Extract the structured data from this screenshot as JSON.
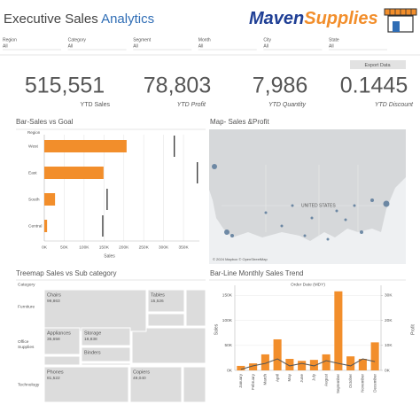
{
  "header": {
    "title": "Executive Sales",
    "title_highlight": "Analytics",
    "logo_first": "Maven",
    "logo_second": "Supplies"
  },
  "filters": [
    {
      "label": "Region",
      "value": "All"
    },
    {
      "label": "Category",
      "value": "All"
    },
    {
      "label": "Segment",
      "value": "All"
    },
    {
      "label": "Month",
      "value": "All"
    },
    {
      "label": "City",
      "value": "All"
    },
    {
      "label": "State",
      "value": "All"
    }
  ],
  "export_button": "Export Data",
  "kpis": [
    {
      "value": "515,551",
      "label": "YTD Sales"
    },
    {
      "value": "78,803",
      "label": "YTD Profit"
    },
    {
      "value": "7,986",
      "label": "YTD Quantity"
    },
    {
      "value": "0.1445",
      "label": "YTD Discount"
    }
  ],
  "map": {
    "title": "Map- Sales &Profit",
    "country": "UNITED STATES",
    "attribution": "© 2024 Mapbox © OpenStreetMap"
  },
  "chart_data": [
    {
      "type": "bar",
      "orientation": "horizontal",
      "title": "Bar-Sales vs Goal",
      "category_label": "Region",
      "categories": [
        "West",
        "East",
        "South",
        "Central"
      ],
      "values": [
        207000,
        149000,
        27000,
        7000
      ],
      "goals": [
        327000,
        385000,
        158000,
        147000
      ],
      "color": "#f28e2b",
      "goal_color": "#222222",
      "x_label": "Sales",
      "xlim": [
        0,
        390000
      ],
      "xticks": [
        {
          "value": 0,
          "label": "0K"
        },
        {
          "value": 50000,
          "label": "50K"
        },
        {
          "value": 100000,
          "label": "100K"
        },
        {
          "value": 150000,
          "label": "150K"
        },
        {
          "value": 200000,
          "label": "200K"
        },
        {
          "value": 250000,
          "label": "250K"
        },
        {
          "value": 300000,
          "label": "300K"
        },
        {
          "value": 350000,
          "label": "350K"
        }
      ],
      "grid": true
    },
    {
      "type": "treemap",
      "title": "Treemap Sales vs Sub category",
      "category_label": "Category",
      "color": "#dcdcdc",
      "groups": [
        {
          "name": "Furniture",
          "categories": [
            "Chairs",
            "Tables"
          ],
          "values": [
            99863,
            15526
          ],
          "value_labels": [
            "99,863",
            "15,526"
          ]
        },
        {
          "name": "Office Supplies",
          "categories": [
            "Appliances",
            "Storage",
            "Binders"
          ],
          "values": [
            35658,
            18838,
            null
          ],
          "value_labels": [
            "35,658",
            "18,838",
            null
          ]
        },
        {
          "name": "Technology",
          "categories": [
            "Phones",
            "Copiers"
          ],
          "values": [
            81522,
            49040
          ],
          "value_labels": [
            "81,522",
            "49,040"
          ]
        }
      ]
    },
    {
      "type": "bar-line",
      "title": "Bar-Line Monthly Sales Trend",
      "subtitle": "Order Date (MDY)",
      "categories": [
        "January",
        "February",
        "March",
        "April",
        "May",
        "June",
        "July",
        "August",
        "September",
        "October",
        "November",
        "December"
      ],
      "series": [
        {
          "name": "Sales",
          "type": "bar",
          "color": "#f28e2b",
          "values": [
            9000,
            14000,
            32000,
            62000,
            23000,
            19000,
            21000,
            32000,
            158000,
            28000,
            23000,
            56000
          ]
        },
        {
          "name": "Profit",
          "type": "line",
          "axis": "y2",
          "color": "#555555",
          "values": [
            400,
            1800,
            2800,
            4600,
            1800,
            2800,
            1800,
            3900,
            2800,
            1800,
            4600,
            3500
          ]
        }
      ],
      "ylim": [
        0,
        170000
      ],
      "yticks": [
        {
          "value": 0,
          "label": "0K"
        },
        {
          "value": 50000,
          "label": "50K"
        },
        {
          "value": 100000,
          "label": "100K"
        },
        {
          "value": 150000,
          "label": "150K"
        }
      ],
      "y2lim": [
        0,
        34000
      ],
      "y2ticks": [
        {
          "value": 0,
          "label": "0K"
        },
        {
          "value": 10000,
          "label": "10K"
        },
        {
          "value": 20000,
          "label": "20K"
        },
        {
          "value": 30000,
          "label": "30K"
        }
      ],
      "grid": true
    }
  ]
}
